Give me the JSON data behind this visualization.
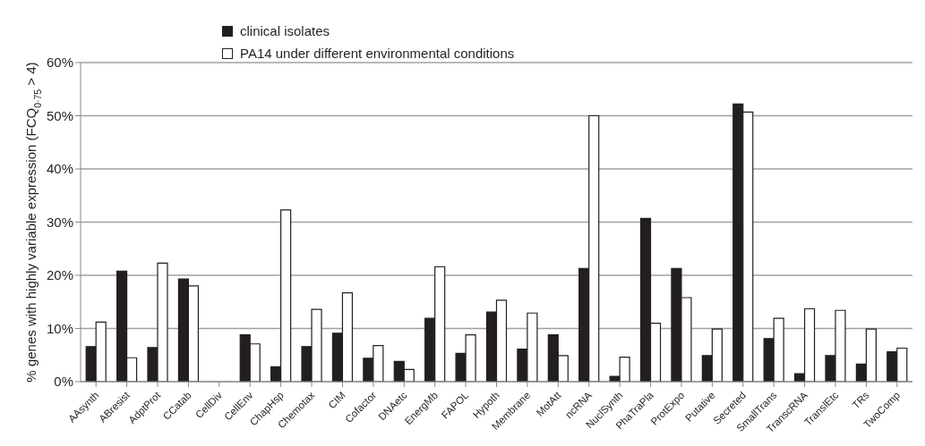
{
  "chart_data": {
    "type": "bar",
    "ylabel": "% genes with highly variable expression (FCQ$_{0·75}$ > 4)",
    "categories": [
      "AAsynth",
      "ABresist",
      "AdptProt",
      "CCatab",
      "CellDiv",
      "CellEnv",
      "ChapHsp",
      "Chemotax",
      "CIM",
      "Cofactor",
      "DNAetc",
      "EnergMb",
      "FAPOL",
      "Hypoth",
      "Membrane",
      "MotAtt",
      "ncRNA",
      "NuclSynth",
      "PhaTraPla",
      "ProtExpo",
      "Putative",
      "Secreted",
      "SmallTrans",
      "TranscRNA",
      "TranslEtc",
      "TRs",
      "TwoComp"
    ],
    "series": [
      {
        "name": "clinical isolates",
        "color": "#231f20",
        "values": [
          6.6,
          20.8,
          6.4,
          19.3,
          0,
          8.8,
          2.8,
          6.6,
          9.1,
          4.4,
          3.8,
          11.9,
          5.3,
          13.1,
          6.1,
          8.8,
          21.3,
          1.0,
          30.7,
          21.3,
          4.9,
          52.2,
          8.1,
          1.5,
          4.9,
          3.3,
          5.6
        ]
      },
      {
        "name": "PA14 under different environmental conditions",
        "color": "#ffffff",
        "values": [
          11.2,
          4.5,
          22.3,
          18.0,
          0,
          7.1,
          32.3,
          13.6,
          16.7,
          6.8,
          2.3,
          21.6,
          8.8,
          15.3,
          12.9,
          4.9,
          50.0,
          4.6,
          11.0,
          15.8,
          9.9,
          50.7,
          11.9,
          13.7,
          13.4,
          9.9,
          6.3
        ]
      }
    ],
    "ylim": [
      0,
      60
    ],
    "yticks": [
      {
        "value": 0,
        "label": "0%"
      },
      {
        "value": 10,
        "label": "10%"
      },
      {
        "value": 20,
        "label": "20%"
      },
      {
        "value": 30,
        "label": "30%"
      },
      {
        "value": 40,
        "label": "40%"
      },
      {
        "value": 50,
        "label": "50%"
      },
      {
        "value": 60,
        "label": "60%"
      }
    ],
    "grid": "y",
    "legend": "top"
  }
}
